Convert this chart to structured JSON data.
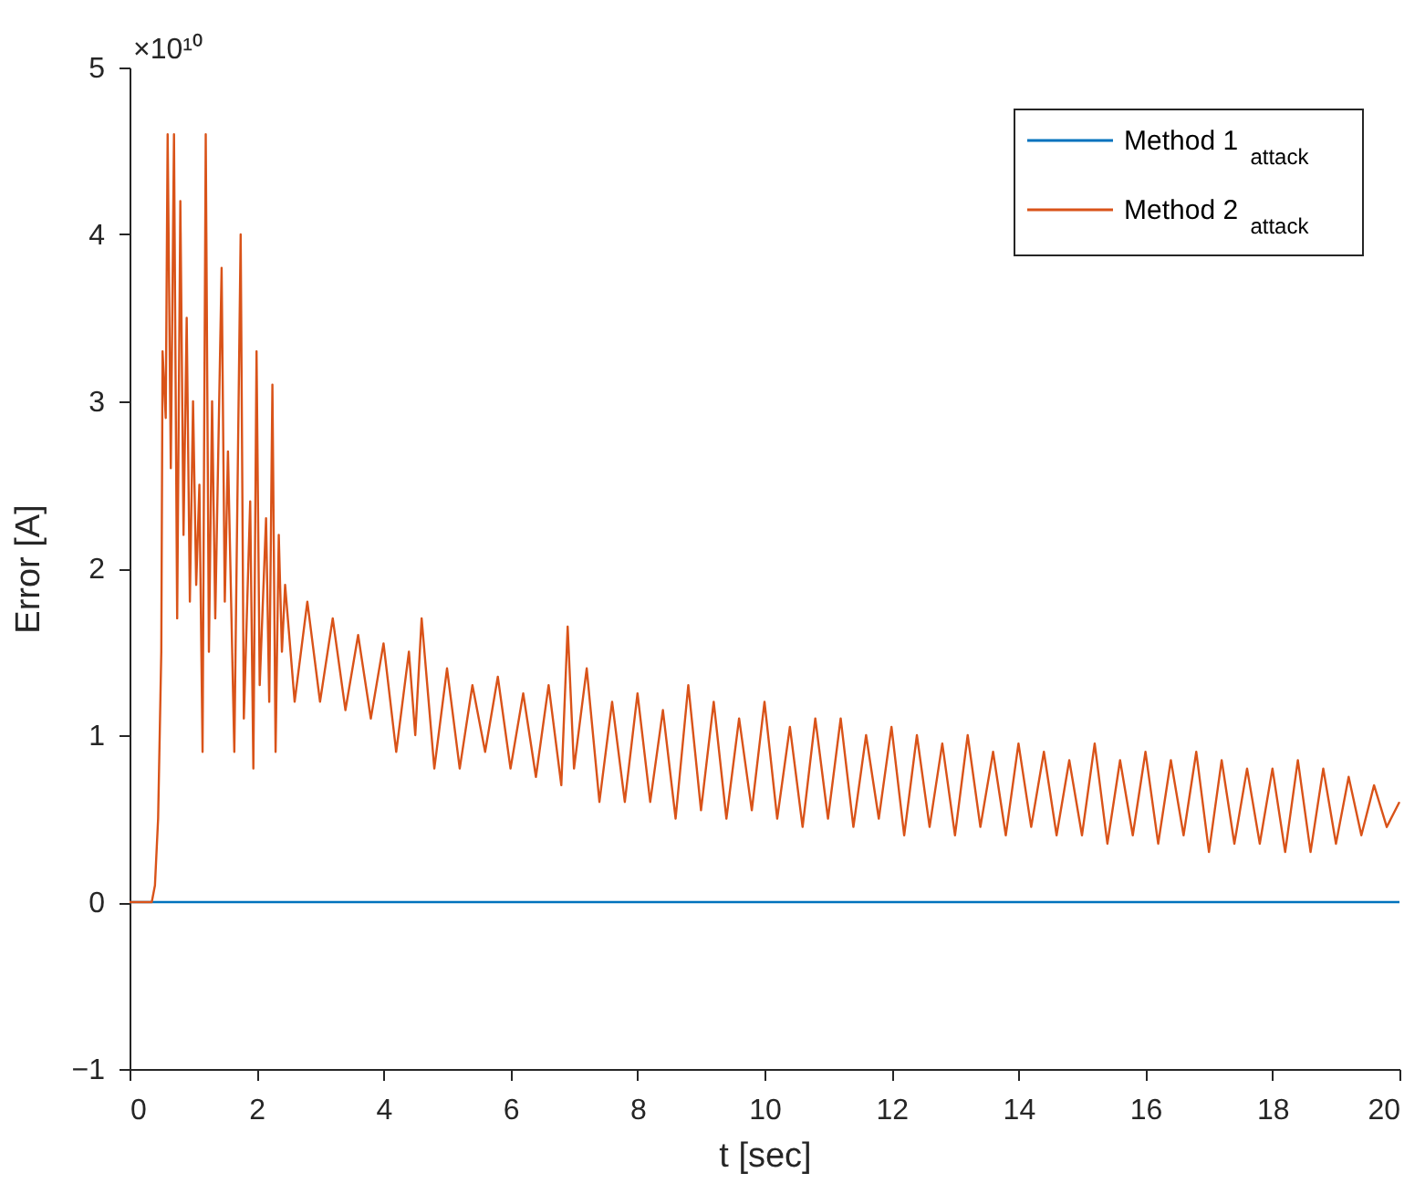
{
  "chart_data": {
    "type": "line",
    "xlabel": "t [sec]",
    "ylabel": "Error [A]",
    "annotations": [
      "×10¹⁰"
    ],
    "xlim": [
      0,
      20
    ],
    "xticks": [
      0,
      2,
      4,
      6,
      8,
      10,
      12,
      14,
      16,
      18,
      20
    ],
    "ylim": [
      -1,
      5
    ],
    "yticks": [
      -1,
      0,
      1,
      2,
      3,
      4,
      5
    ],
    "grid": false,
    "legend": "top right",
    "marker": "none",
    "line_style": "solid",
    "series": [
      {
        "name": "Method 1$_{attack}$",
        "color": "#0072bd",
        "x": [
          0,
          20
        ],
        "values": [
          0,
          0
        ]
      },
      {
        "name": "Method 2$_{attack}$",
        "color": "#d95319",
        "x": [
          0,
          0.35,
          0.4,
          0.45,
          0.5,
          0.52,
          0.57,
          0.6,
          0.65,
          0.7,
          0.75,
          0.8,
          0.85,
          0.9,
          0.95,
          1.0,
          1.05,
          1.1,
          1.15,
          1.2,
          1.25,
          1.3,
          1.35,
          1.45,
          1.5,
          1.55,
          1.65,
          1.75,
          1.8,
          1.9,
          1.95,
          2.0,
          2.05,
          2.15,
          2.2,
          2.25,
          2.3,
          2.35,
          2.4,
          2.45,
          2.6,
          2.8,
          3.0,
          3.2,
          3.4,
          3.6,
          3.8,
          4.0,
          4.2,
          4.4,
          4.5,
          4.6,
          4.8,
          5.0,
          5.2,
          5.4,
          5.6,
          5.8,
          6.0,
          6.2,
          6.4,
          6.6,
          6.8,
          6.9,
          7.0,
          7.2,
          7.4,
          7.6,
          7.8,
          8.0,
          8.2,
          8.4,
          8.6,
          8.8,
          9.0,
          9.2,
          9.4,
          9.6,
          9.8,
          10.0,
          10.2,
          10.4,
          10.6,
          10.8,
          11.0,
          11.2,
          11.4,
          11.6,
          11.8,
          12.0,
          12.2,
          12.4,
          12.6,
          12.8,
          13.0,
          13.2,
          13.4,
          13.6,
          13.8,
          14.0,
          14.2,
          14.4,
          14.6,
          14.8,
          15.0,
          15.2,
          15.4,
          15.6,
          15.8,
          16.0,
          16.2,
          16.4,
          16.6,
          16.8,
          17.0,
          17.2,
          17.4,
          17.6,
          17.8,
          18.0,
          18.2,
          18.4,
          18.6,
          18.8,
          19.0,
          19.2,
          19.4,
          19.6,
          19.8,
          20.0
        ],
        "values": [
          0,
          0,
          0.1,
          0.5,
          1.5,
          3.3,
          2.9,
          4.6,
          2.6,
          4.6,
          1.7,
          4.2,
          2.2,
          3.5,
          1.8,
          3.0,
          1.9,
          2.5,
          0.9,
          4.6,
          1.5,
          3.0,
          1.7,
          3.8,
          1.8,
          2.7,
          0.9,
          4.0,
          1.1,
          2.4,
          0.8,
          3.3,
          1.3,
          2.3,
          1.2,
          3.1,
          0.9,
          2.2,
          1.5,
          1.9,
          1.2,
          1.8,
          1.2,
          1.7,
          1.15,
          1.6,
          1.1,
          1.55,
          0.9,
          1.5,
          1.0,
          1.7,
          0.8,
          1.4,
          0.8,
          1.3,
          0.9,
          1.35,
          0.8,
          1.25,
          0.75,
          1.3,
          0.7,
          1.65,
          0.8,
          1.4,
          0.6,
          1.2,
          0.6,
          1.25,
          0.6,
          1.15,
          0.5,
          1.3,
          0.55,
          1.2,
          0.5,
          1.1,
          0.55,
          1.2,
          0.5,
          1.05,
          0.45,
          1.1,
          0.5,
          1.1,
          0.45,
          1.0,
          0.5,
          1.05,
          0.4,
          1.0,
          0.45,
          0.95,
          0.4,
          1.0,
          0.45,
          0.9,
          0.4,
          0.95,
          0.45,
          0.9,
          0.4,
          0.85,
          0.4,
          0.95,
          0.35,
          0.85,
          0.4,
          0.9,
          0.35,
          0.85,
          0.4,
          0.9,
          0.3,
          0.85,
          0.35,
          0.8,
          0.35,
          0.8,
          0.3,
          0.85,
          0.3,
          0.8,
          0.35,
          0.75,
          0.4,
          0.7,
          0.45,
          0.6
        ]
      }
    ]
  }
}
